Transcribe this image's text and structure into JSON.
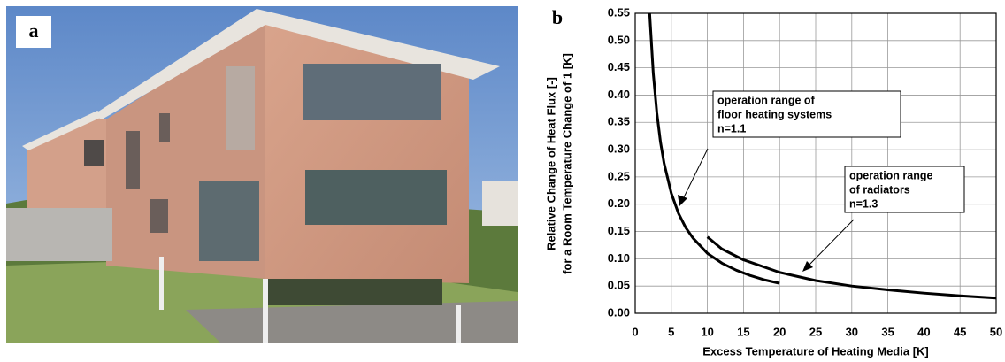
{
  "panel_labels": [
    "a",
    "b"
  ],
  "chart_data": {
    "type": "line",
    "xlabel": "Excess Temperature of Heating Media [K]",
    "ylabel": [
      "Relative Change of Heat Flux [-]",
      "for a Room Temperature Change of 1 [K]"
    ],
    "xlim": [
      0,
      50
    ],
    "xticks": [
      0,
      5,
      10,
      15,
      20,
      25,
      30,
      35,
      40,
      45,
      50
    ],
    "ylim": [
      0,
      0.55
    ],
    "yticks": [
      {
        "value": 0,
        "label": "0.00"
      },
      0.05,
      {
        "value": 0.1,
        "label": "0.10"
      },
      0.15,
      {
        "value": 0.2,
        "label": "0.20"
      },
      0.25,
      {
        "value": 0.3,
        "label": "0.30"
      },
      0.35,
      {
        "value": 0.4,
        "label": "0.40"
      },
      0.45,
      {
        "value": 0.5,
        "label": "0.50"
      },
      0.55
    ],
    "grid": true,
    "series": [
      {
        "color": "#000000",
        "x": [
          2,
          2.5,
          3,
          3.5,
          4,
          5,
          6,
          7,
          8,
          10,
          12,
          14,
          16,
          18,
          20
        ],
        "values": [
          0.55,
          0.44,
          0.367,
          0.314,
          0.275,
          0.22,
          0.183,
          0.157,
          0.138,
          0.11,
          0.092,
          0.079,
          0.069,
          0.061,
          0.055
        ]
      },
      {
        "color": "#000000",
        "x": [
          10,
          12,
          15,
          20,
          25,
          30,
          35,
          40,
          45,
          50
        ],
        "values": [
          0.14,
          0.118,
          0.098,
          0.075,
          0.06,
          0.05,
          0.043,
          0.037,
          0.032,
          0.028
        ]
      }
    ],
    "annotations": [
      {
        "lines": [
          "operation range of",
          "floor heating systems",
          "n=1.1"
        ]
      },
      {
        "lines": [
          "operation range",
          "of radiators",
          "n=1.3"
        ]
      }
    ]
  }
}
